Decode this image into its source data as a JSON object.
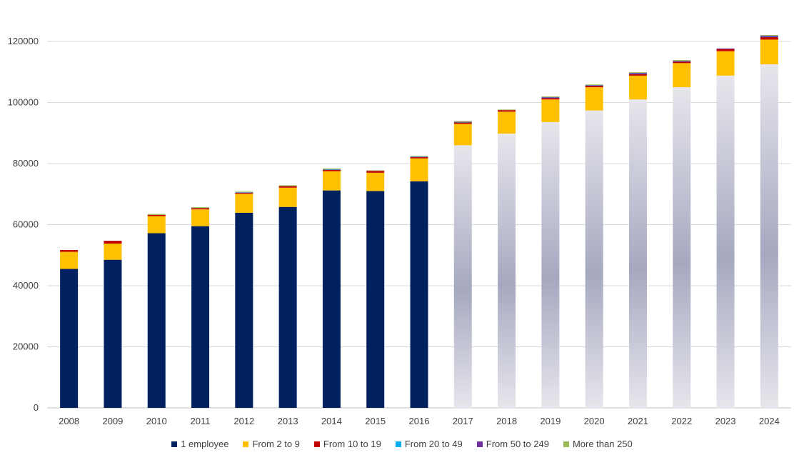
{
  "chart_data": {
    "type": "bar",
    "stacked": true,
    "categories": [
      "2008",
      "2009",
      "2010",
      "2011",
      "2012",
      "2013",
      "2014",
      "2015",
      "2016",
      "2017",
      "2018",
      "2019",
      "2020",
      "2021",
      "2022",
      "2023",
      "2024"
    ],
    "forecast_from": "2017",
    "ylim": [
      0,
      120000
    ],
    "yticks": [
      0,
      20000,
      40000,
      60000,
      80000,
      100000,
      120000
    ],
    "grid": true,
    "legend_position": "bottom",
    "series": [
      {
        "name": "1 employee",
        "color": "#002060",
        "forecast_color": "#d9d9e3",
        "values": [
          45500,
          48500,
          57200,
          59500,
          63900,
          65800,
          71200,
          71000,
          74200,
          86000,
          89800,
          93600,
          97400,
          101000,
          105000,
          108800,
          112500
        ]
      },
      {
        "name": "From 2 to 9",
        "color": "#ffc000",
        "values": [
          5600,
          5300,
          5600,
          5500,
          6200,
          6300,
          6300,
          6000,
          7500,
          7000,
          7200,
          7400,
          7600,
          7800,
          7900,
          8000,
          8100
        ]
      },
      {
        "name": "From 10 to 19",
        "color": "#c00000",
        "values": [
          600,
          900,
          400,
          400,
          300,
          500,
          400,
          600,
          400,
          500,
          500,
          500,
          500,
          500,
          500,
          700,
          800
        ]
      },
      {
        "name": "From 20 to 49",
        "color": "#00b0f0",
        "values": [
          0,
          0,
          0,
          0,
          100,
          0,
          100,
          0,
          100,
          100,
          0,
          100,
          100,
          100,
          100,
          0,
          100
        ]
      },
      {
        "name": "From 50 to 249",
        "color": "#7030a0",
        "values": [
          0,
          0,
          0,
          0,
          100,
          0,
          100,
          0,
          100,
          100,
          0,
          200,
          100,
          300,
          200,
          200,
          400
        ]
      },
      {
        "name": "More than 250",
        "color": "#9bbb59",
        "values": [
          0,
          0,
          300,
          300,
          200,
          300,
          300,
          200,
          200,
          200,
          200,
          200,
          200,
          200,
          200,
          0,
          200
        ]
      }
    ]
  }
}
